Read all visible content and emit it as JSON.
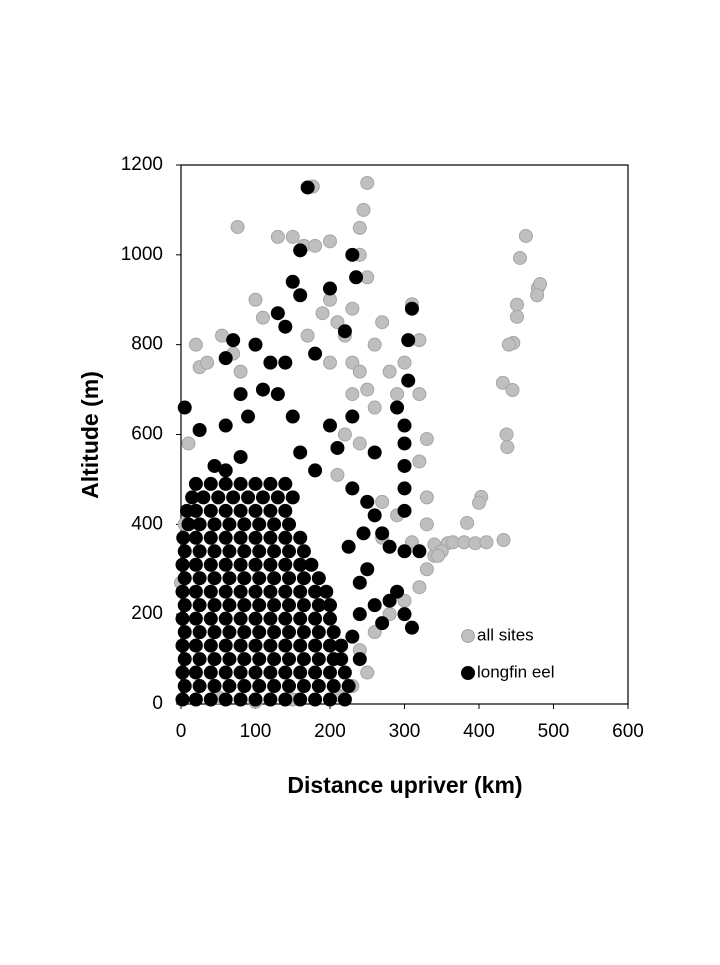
{
  "chart_data": {
    "type": "scatter",
    "x_label": "Distance upriver (km)",
    "y_label": "Altitude (m)",
    "xlim": [
      0,
      600
    ],
    "xticks": [
      0,
      100,
      200,
      300,
      400,
      500,
      600
    ],
    "ylim": [
      0,
      1200
    ],
    "yticks": [
      0,
      200,
      400,
      600,
      800,
      1000,
      1200
    ],
    "grid": false,
    "legend": "lower right",
    "series": [
      {
        "name": "all sites",
        "color": "#bfbfbf",
        "x": [
          0,
          5,
          10,
          20,
          25,
          35,
          55,
          70,
          80,
          100,
          110,
          130,
          150,
          165,
          180,
          200,
          240,
          245,
          250,
          240,
          250,
          230,
          270,
          260,
          280,
          250,
          260,
          290,
          320,
          330,
          320,
          330,
          330,
          310,
          340,
          330,
          320,
          300,
          280,
          260,
          240,
          250,
          230,
          210,
          150,
          100,
          50,
          76,
          177,
          310,
          320,
          300,
          200,
          210,
          220,
          230,
          240,
          230,
          220,
          240,
          210,
          270,
          290,
          270,
          200,
          190,
          170,
          463,
          455,
          479,
          482,
          478,
          451,
          451,
          446,
          440,
          432,
          445,
          437,
          438,
          403,
          400,
          384,
          358,
          340,
          365,
          380,
          395,
          410,
          433,
          350,
          345
        ],
        "values": [
          270,
          400,
          580,
          800,
          750,
          760,
          820,
          780,
          740,
          900,
          860,
          1040,
          1040,
          1020,
          1020,
          1030,
          1060,
          1100,
          1160,
          1000,
          950,
          880,
          850,
          800,
          740,
          700,
          660,
          690,
          690,
          590,
          540,
          460,
          400,
          360,
          330,
          300,
          260,
          230,
          200,
          160,
          120,
          70,
          40,
          20,
          10,
          5,
          15,
          1062,
          1152,
          890,
          810,
          760,
          900,
          850,
          820,
          760,
          740,
          690,
          600,
          580,
          510,
          450,
          420,
          370,
          760,
          870,
          820,
          1042,
          993,
          926,
          935,
          910,
          889,
          862,
          804,
          800,
          715,
          699,
          600,
          572,
          461,
          448,
          403,
          358,
          355,
          360,
          360,
          358,
          360,
          365,
          340,
          330
        ]
      },
      {
        "name": "longfin eel",
        "color": "#000000",
        "x": [
          2,
          20,
          40,
          60,
          80,
          100,
          120,
          140,
          160,
          180,
          200,
          220,
          5,
          25,
          45,
          65,
          85,
          105,
          125,
          145,
          165,
          185,
          205,
          225,
          2,
          20,
          40,
          60,
          80,
          100,
          120,
          140,
          160,
          180,
          200,
          220,
          5,
          25,
          45,
          65,
          85,
          105,
          125,
          145,
          165,
          185,
          205,
          215,
          2,
          20,
          40,
          60,
          80,
          100,
          120,
          140,
          160,
          180,
          200,
          215,
          5,
          25,
          45,
          65,
          85,
          105,
          125,
          145,
          165,
          185,
          205,
          2,
          20,
          40,
          60,
          80,
          100,
          120,
          140,
          160,
          180,
          200,
          5,
          25,
          45,
          65,
          85,
          105,
          125,
          145,
          165,
          185,
          200,
          2,
          20,
          40,
          60,
          80,
          100,
          120,
          140,
          160,
          180,
          195,
          5,
          25,
          45,
          65,
          85,
          105,
          125,
          145,
          165,
          185,
          2,
          20,
          40,
          60,
          80,
          100,
          120,
          140,
          160,
          175,
          5,
          25,
          45,
          65,
          85,
          105,
          125,
          145,
          165,
          3,
          20,
          40,
          60,
          80,
          100,
          120,
          140,
          160,
          10,
          25,
          45,
          65,
          85,
          105,
          125,
          145,
          8,
          20,
          40,
          60,
          80,
          100,
          120,
          140,
          15,
          30,
          50,
          70,
          90,
          110,
          130,
          150,
          20,
          40,
          60,
          80,
          100,
          120,
          140,
          5,
          25,
          45,
          60,
          80,
          60,
          90,
          110,
          130,
          150,
          120,
          140,
          160,
          150,
          170,
          160,
          230,
          235,
          200,
          220,
          180,
          200,
          210,
          230,
          160,
          180,
          230,
          250,
          260,
          270,
          280,
          300,
          320,
          290,
          300,
          310,
          270,
          280,
          250,
          240,
          300,
          300,
          300,
          300,
          300,
          305,
          305,
          310,
          290,
          260,
          245,
          225,
          240,
          260,
          230,
          240,
          60,
          80,
          70,
          100,
          130,
          140
        ],
        "values": [
          10,
          10,
          10,
          10,
          10,
          10,
          10,
          10,
          10,
          10,
          10,
          10,
          40,
          40,
          40,
          40,
          40,
          40,
          40,
          40,
          40,
          40,
          40,
          40,
          70,
          70,
          70,
          70,
          70,
          70,
          70,
          70,
          70,
          70,
          70,
          70,
          100,
          100,
          100,
          100,
          100,
          100,
          100,
          100,
          100,
          100,
          100,
          100,
          130,
          130,
          130,
          130,
          130,
          130,
          130,
          130,
          130,
          130,
          130,
          130,
          160,
          160,
          160,
          160,
          160,
          160,
          160,
          160,
          160,
          160,
          160,
          190,
          190,
          190,
          190,
          190,
          190,
          190,
          190,
          190,
          190,
          190,
          220,
          220,
          220,
          220,
          220,
          220,
          220,
          220,
          220,
          220,
          220,
          250,
          250,
          250,
          250,
          250,
          250,
          250,
          250,
          250,
          250,
          250,
          280,
          280,
          280,
          280,
          280,
          280,
          280,
          280,
          280,
          280,
          310,
          310,
          310,
          310,
          310,
          310,
          310,
          310,
          310,
          310,
          340,
          340,
          340,
          340,
          340,
          340,
          340,
          340,
          340,
          370,
          370,
          370,
          370,
          370,
          370,
          370,
          370,
          370,
          400,
          400,
          400,
          400,
          400,
          400,
          400,
          400,
          430,
          430,
          430,
          430,
          430,
          430,
          430,
          430,
          460,
          460,
          460,
          460,
          460,
          460,
          460,
          460,
          490,
          490,
          490,
          490,
          490,
          490,
          490,
          660,
          610,
          530,
          520,
          550,
          620,
          640,
          700,
          690,
          640,
          760,
          840,
          910,
          940,
          1150,
          1010,
          1000,
          950,
          925,
          830,
          780,
          620,
          570,
          640,
          560,
          520,
          480,
          450,
          420,
          380,
          350,
          340,
          340,
          250,
          200,
          170,
          180,
          230,
          300,
          270,
          430,
          480,
          530,
          580,
          620,
          720,
          810,
          880,
          660,
          560,
          380,
          350,
          200,
          220,
          150,
          100,
          770,
          690,
          810,
          800,
          870,
          760
        ]
      }
    ]
  }
}
